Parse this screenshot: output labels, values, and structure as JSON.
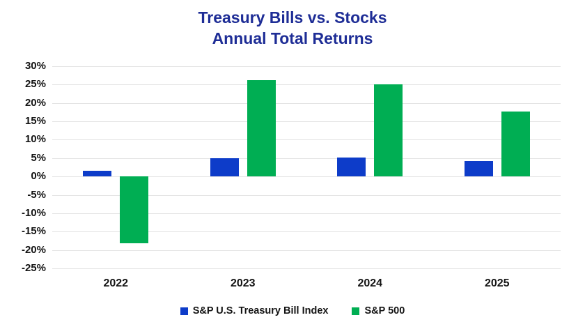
{
  "title": {
    "line1": "Treasury Bills vs. Stocks",
    "line2": "Annual Total Returns"
  },
  "colors": {
    "title": "#1e2d96",
    "tbill_blue": "#0d3cc9",
    "sp500_green": "#00ae53",
    "gridline": "#e4e4e4",
    "axis_text": "#141414"
  },
  "chart_data": {
    "type": "bar",
    "title": "Treasury Bills vs. Stocks",
    "subtitle": "Annual Total Returns",
    "categories": [
      "2022",
      "2023",
      "2024",
      "2025"
    ],
    "series": [
      {
        "name": "S&P U.S. Treasury Bill Index",
        "color": "#0d3cc9",
        "values": [
          1.5,
          5.0,
          5.2,
          4.2
        ]
      },
      {
        "name": "S&P 500",
        "color": "#00ae53",
        "values": [
          -18.1,
          26.3,
          25.0,
          17.7
        ]
      }
    ],
    "xlabel": "",
    "ylabel": "",
    "ylim": [
      -25,
      30
    ],
    "yticks": [
      {
        "value": 30,
        "label": "30%"
      },
      {
        "value": 25,
        "label": "25%"
      },
      {
        "value": 20,
        "label": "20%"
      },
      {
        "value": 15,
        "label": "15%"
      },
      {
        "value": 10,
        "label": "10%"
      },
      {
        "value": 5,
        "label": "5%"
      },
      {
        "value": 0,
        "label": "0%"
      },
      {
        "value": -5,
        "label": "-5%"
      },
      {
        "value": -10,
        "label": "-10%"
      },
      {
        "value": -15,
        "label": "-15%"
      },
      {
        "value": -20,
        "label": "-20%"
      },
      {
        "value": -25,
        "label": "-25%"
      }
    ],
    "grid": true,
    "legend_position": "bottom"
  }
}
